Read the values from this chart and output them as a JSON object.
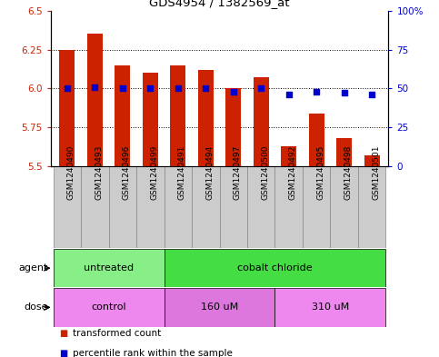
{
  "title": "GDS4954 / 1382569_at",
  "samples": [
    "GSM1240490",
    "GSM1240493",
    "GSM1240496",
    "GSM1240499",
    "GSM1240491",
    "GSM1240494",
    "GSM1240497",
    "GSM1240500",
    "GSM1240492",
    "GSM1240495",
    "GSM1240498",
    "GSM1240501"
  ],
  "bar_values": [
    6.25,
    6.35,
    6.15,
    6.1,
    6.15,
    6.12,
    6.0,
    6.07,
    5.63,
    5.84,
    5.68,
    5.57
  ],
  "dot_values": [
    50,
    51,
    50,
    50,
    50,
    50,
    48,
    50,
    46,
    48,
    47,
    46
  ],
  "bar_bottom": 5.5,
  "ylim_left": [
    5.5,
    6.5
  ],
  "ylim_right": [
    0,
    100
  ],
  "yticks_left": [
    5.5,
    5.75,
    6.0,
    6.25,
    6.5
  ],
  "yticks_right": [
    0,
    25,
    50,
    75,
    100
  ],
  "grid_lines": [
    5.75,
    6.0,
    6.25
  ],
  "bar_color": "#cc2200",
  "dot_color": "#0000cc",
  "agent_groups": [
    {
      "label": "untreated",
      "start": 0,
      "end": 4,
      "color": "#88ee88"
    },
    {
      "label": "cobalt chloride",
      "start": 4,
      "end": 12,
      "color": "#44dd44"
    }
  ],
  "dose_groups": [
    {
      "label": "control",
      "start": 0,
      "end": 4,
      "color": "#ee88ee"
    },
    {
      "label": "160 uM",
      "start": 4,
      "end": 8,
      "color": "#dd77dd"
    },
    {
      "label": "310 uM",
      "start": 8,
      "end": 12,
      "color": "#ee88ee"
    }
  ],
  "legend_items": [
    {
      "label": "transformed count",
      "color": "#cc2200"
    },
    {
      "label": "percentile rank within the sample",
      "color": "#0000cc"
    }
  ],
  "background_color": "#ffffff",
  "tick_label_color_left": "#cc2200",
  "tick_label_color_right": "#0000cc",
  "sample_box_color": "#cccccc",
  "sample_box_edge": "#888888"
}
